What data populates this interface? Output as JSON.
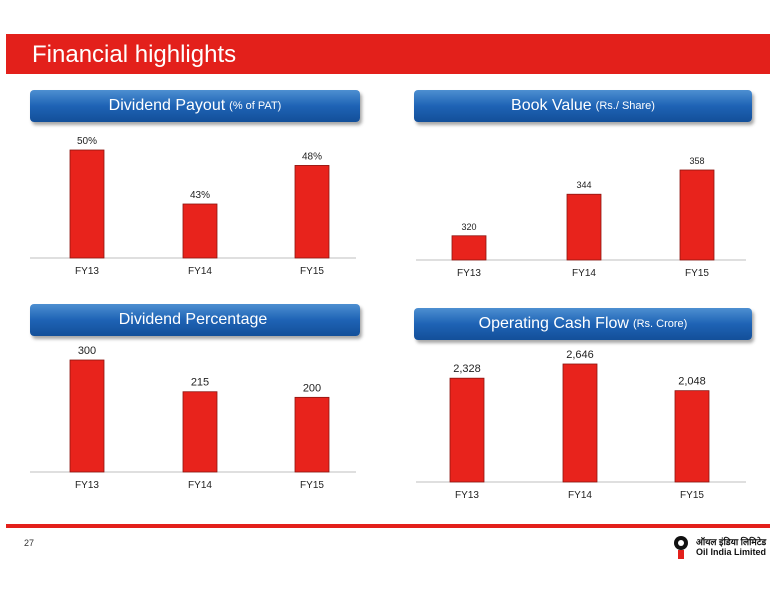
{
  "page": {
    "title": "Financial highlights",
    "page_number": "27"
  },
  "logo": {
    "hindi_text": "ऑयल इंडिया लिमिटेड",
    "english_text": "Oil India Limited"
  },
  "colors": {
    "accent_red": "#e3201b",
    "header_blue": "#1e63b5",
    "bar_red": "#e8231c"
  },
  "panels": [
    {
      "title": "Dividend Payout",
      "unit": "(% of PAT)"
    },
    {
      "title": "Book Value",
      "unit": "(Rs./ Share)"
    },
    {
      "title": "Dividend Percentage",
      "unit": ""
    },
    {
      "title": "Operating Cash Flow",
      "unit": "(Rs. Crore)"
    }
  ],
  "chart_data": [
    {
      "type": "bar",
      "title": "Dividend Payout (% of PAT)",
      "categories": [
        "FY13",
        "FY14",
        "FY15"
      ],
      "values": [
        50,
        43,
        48
      ],
      "data_labels": [
        "50%",
        "43%",
        "48%"
      ],
      "ylim": [
        36,
        50
      ]
    },
    {
      "type": "bar",
      "title": "Book Value (Rs./ Share)",
      "categories": [
        "FY13",
        "FY14",
        "FY15"
      ],
      "values": [
        320,
        344,
        358
      ],
      "data_labels": [
        "320",
        "344",
        "358"
      ],
      "ylim": [
        306,
        358
      ]
    },
    {
      "type": "bar",
      "title": "Dividend Percentage",
      "categories": [
        "FY13",
        "FY14",
        "FY15"
      ],
      "values": [
        300,
        215,
        200
      ],
      "data_labels": [
        "300",
        "215",
        "200"
      ],
      "ylim": [
        0,
        300
      ]
    },
    {
      "type": "bar",
      "title": "Operating Cash Flow (Rs. Crore)",
      "categories": [
        "FY13",
        "FY14",
        "FY15"
      ],
      "values": [
        2328,
        2646,
        2048
      ],
      "data_labels": [
        "2,328",
        "2,646",
        "2,048"
      ],
      "ylim": [
        0,
        2646
      ]
    }
  ]
}
